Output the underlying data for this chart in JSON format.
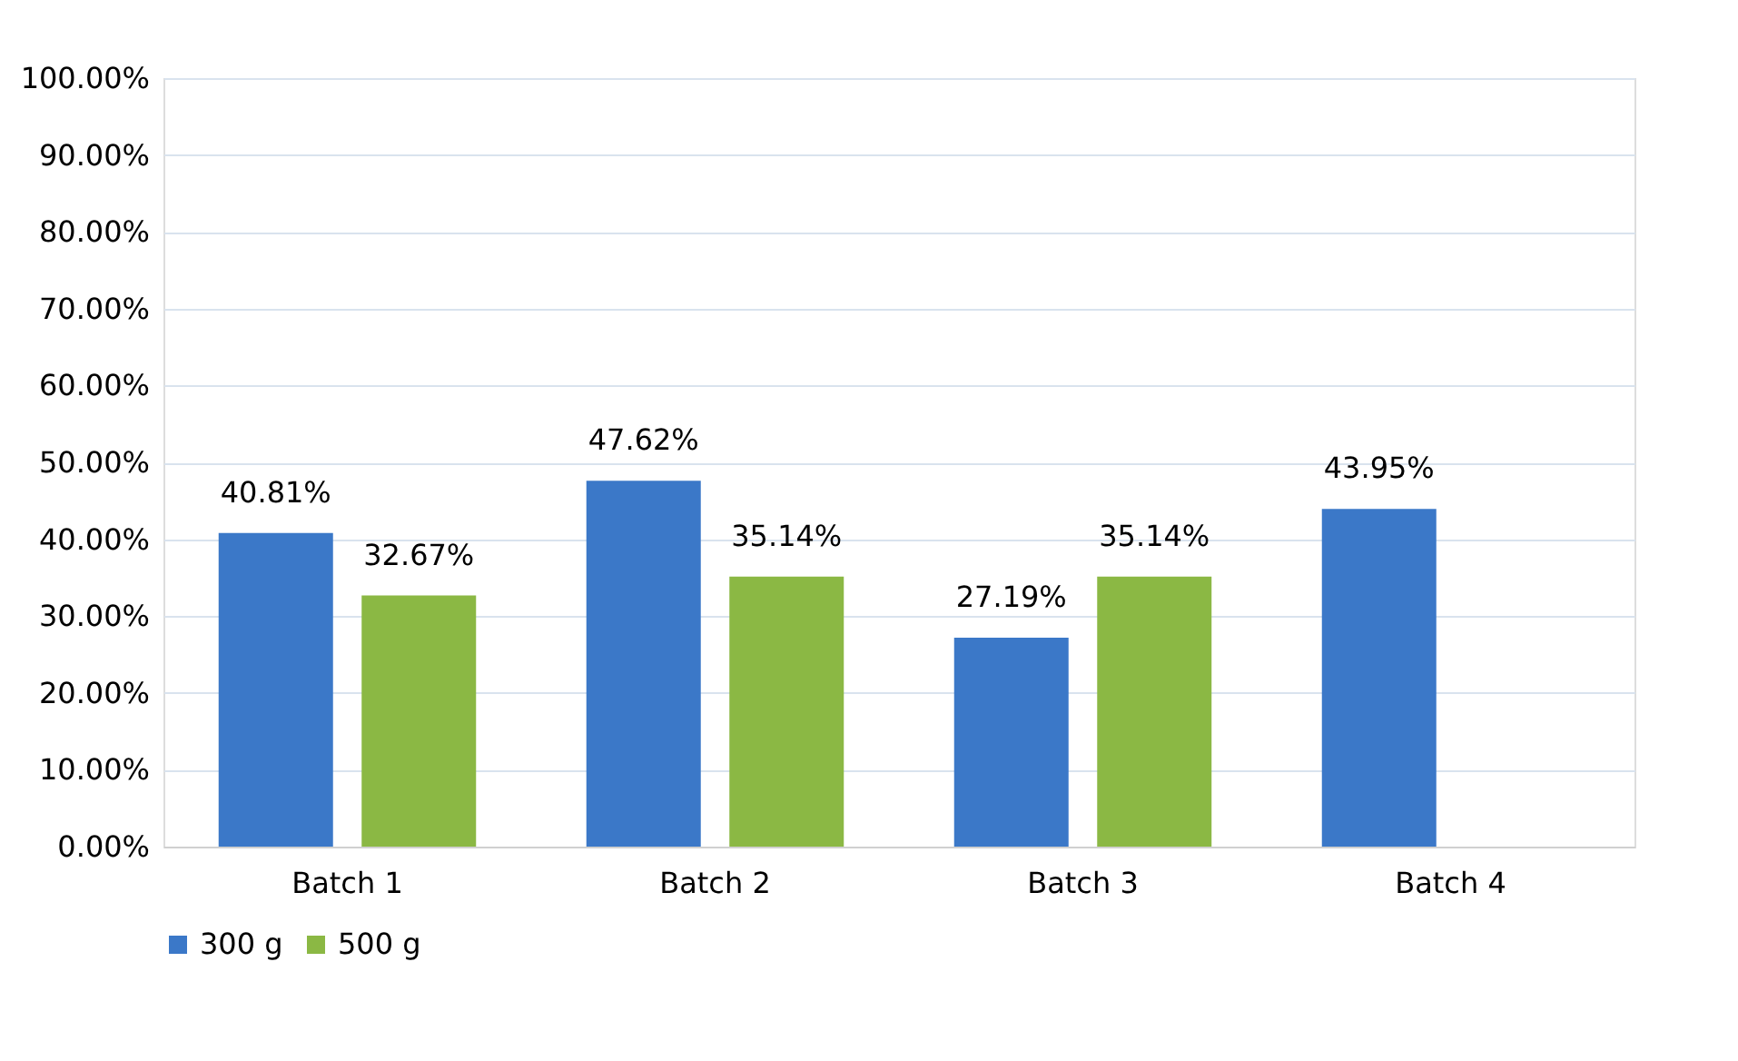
{
  "chart_data": {
    "type": "bar",
    "categories": [
      "Batch 1",
      "Batch 2",
      "Batch 3",
      "Batch 4"
    ],
    "series": [
      {
        "name": "300 g",
        "color": "#3b78c8",
        "values": [
          40.81,
          47.62,
          27.19,
          43.95
        ],
        "value_labels": [
          "40.81%",
          "47.62%",
          "27.19%",
          "43.95%"
        ]
      },
      {
        "name": "500 g",
        "color": "#8bb844",
        "values": [
          32.67,
          35.14,
          35.14,
          null
        ],
        "value_labels": [
          "32.67%",
          "35.14%",
          "35.14%",
          null
        ]
      }
    ],
    "ylim": [
      0,
      100
    ],
    "yticks": [
      {
        "value": 0,
        "label": "0.00%"
      },
      {
        "value": 10,
        "label": "10.00%"
      },
      {
        "value": 20,
        "label": "20.00%"
      },
      {
        "value": 30,
        "label": "30.00%"
      },
      {
        "value": 40,
        "label": "40.00%"
      },
      {
        "value": 50,
        "label": "50.00%"
      },
      {
        "value": 60,
        "label": "60.00%"
      },
      {
        "value": 70,
        "label": "70.00%"
      },
      {
        "value": 80,
        "label": "80.00%"
      },
      {
        "value": 90,
        "label": "90.00%"
      },
      {
        "value": 100,
        "label": "100.00%"
      }
    ],
    "grid": "y",
    "legend": "bottom"
  }
}
